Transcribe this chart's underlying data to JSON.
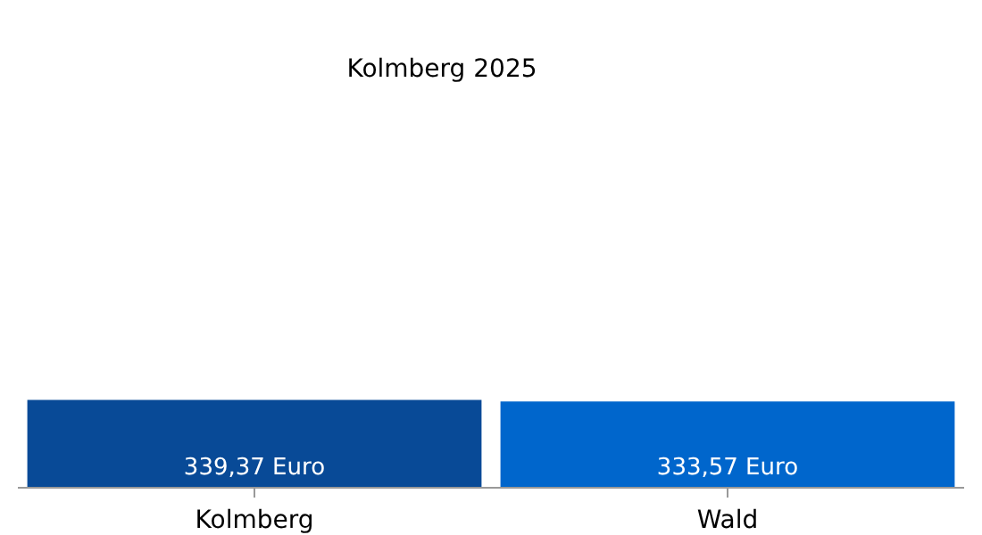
{
  "chart_data": {
    "type": "bar",
    "title": "Kolmberg 2025",
    "categories": [
      "Kolmberg",
      "Wald"
    ],
    "values": [
      339.37,
      333.57
    ],
    "colors": [
      "#084a97",
      "#0066cc"
    ],
    "value_labels": [
      "339,37 Euro",
      "333,57 Euro"
    ]
  }
}
